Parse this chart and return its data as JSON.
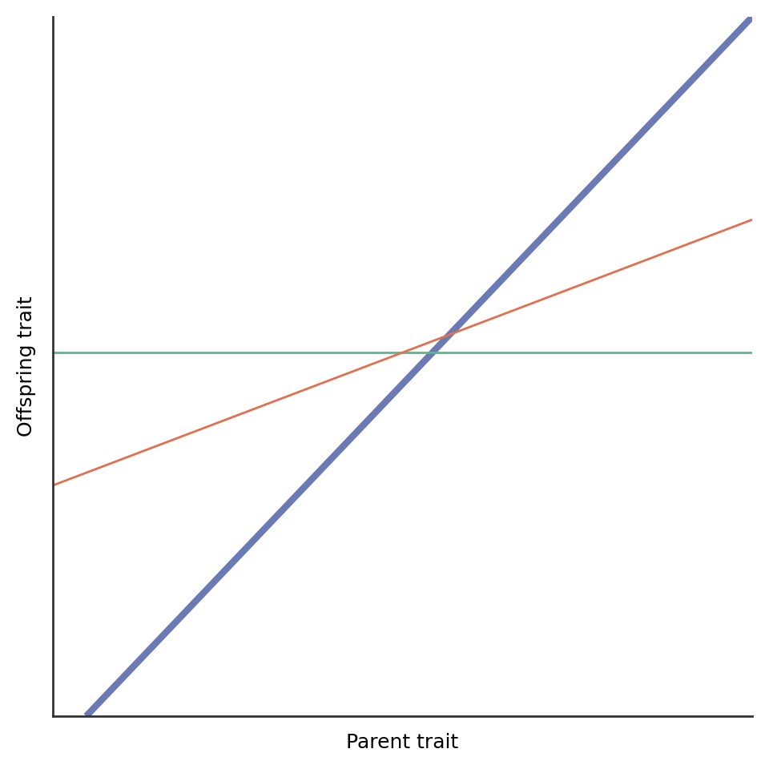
{
  "title": "",
  "xlabel": "Parent trait",
  "ylabel": "Offspring trait",
  "xlim": [
    0,
    1
  ],
  "ylim": [
    0,
    1
  ],
  "blue_line": {
    "slope": 1.05,
    "intercept": -0.05,
    "color": "#6b7ab5",
    "linewidth": 6.0
  },
  "green_line": {
    "y_value": 0.52,
    "color": "#5ab98a",
    "linewidth": 2.0
  },
  "orange_line": {
    "slope": 0.38,
    "intercept": 0.33,
    "color": "#e07050",
    "linewidth": 2.0
  },
  "xlabel_fontsize": 18,
  "ylabel_fontsize": 18,
  "axis_linewidth": 2.0,
  "background_color": "#ffffff",
  "spine_color": "#333333"
}
